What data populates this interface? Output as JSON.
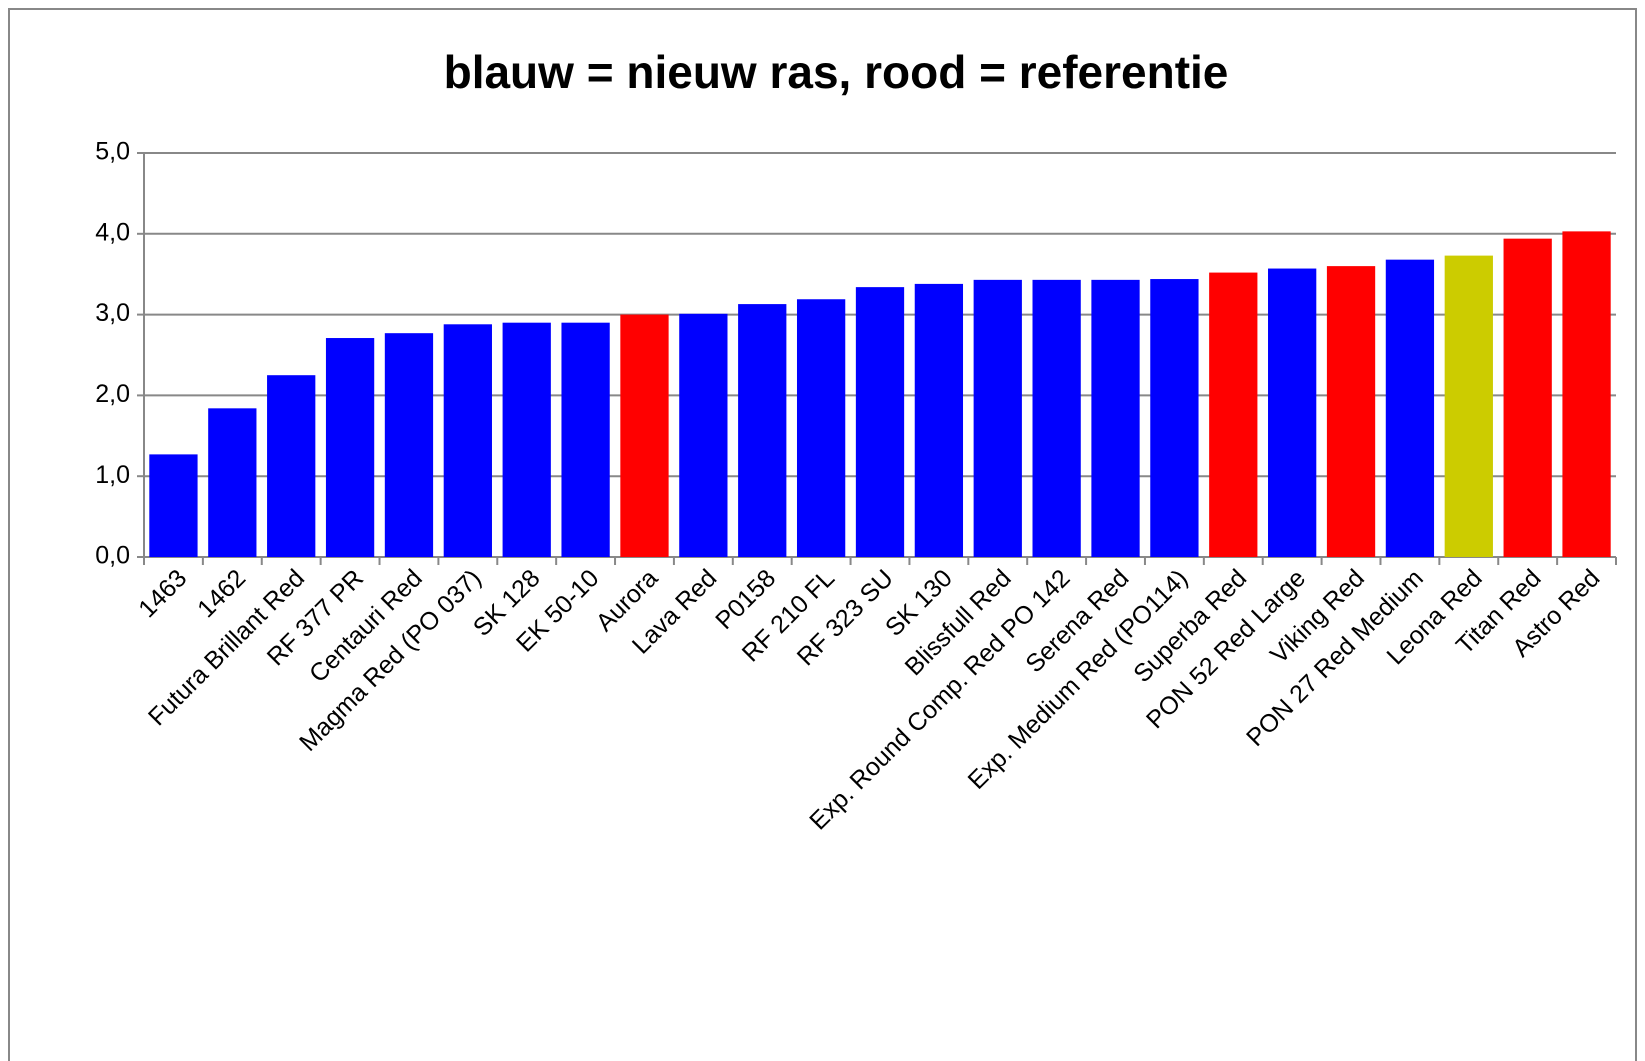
{
  "chart_data": {
    "type": "bar",
    "title": "blauw = nieuw ras, rood = referentie",
    "categories": [
      "1463",
      "1462",
      "Futura Brillant Red",
      "RF 377 PR",
      "Centauri Red",
      "Magma Red (PO 037)",
      "SK 128",
      "EK 50-10",
      "Aurora",
      "Lava Red",
      "P0158",
      "RF 210 FL",
      "RF 323 SU",
      "SK 130",
      "Blissfull Red",
      "Exp. Round Comp. Red PO 142",
      "Serena Red",
      "Exp. Medium Red (PO114)",
      "Superba Red",
      "PON 52 Red Large",
      "Viking Red",
      "PON 27 Red Medium",
      "Leona Red",
      "Titan Red",
      "Astro Red"
    ],
    "values": [
      1.27,
      1.84,
      2.25,
      2.71,
      2.77,
      2.88,
      2.9,
      2.9,
      3.0,
      3.01,
      3.13,
      3.19,
      3.34,
      3.38,
      3.43,
      3.43,
      3.43,
      3.44,
      3.52,
      3.57,
      3.6,
      3.68,
      3.73,
      3.94,
      4.03
    ],
    "colors": [
      "#0000ff",
      "#0000ff",
      "#0000ff",
      "#0000ff",
      "#0000ff",
      "#0000ff",
      "#0000ff",
      "#0000ff",
      "#ff0000",
      "#0000ff",
      "#0000ff",
      "#0000ff",
      "#0000ff",
      "#0000ff",
      "#0000ff",
      "#0000ff",
      "#0000ff",
      "#0000ff",
      "#ff0000",
      "#0000ff",
      "#ff0000",
      "#0000ff",
      "#cccc00",
      "#ff0000",
      "#ff0000"
    ],
    "ylim": [
      0,
      5
    ],
    "yticks": [
      {
        "value": 0,
        "label": "0,0"
      },
      {
        "value": 1,
        "label": "1,0"
      },
      {
        "value": 2,
        "label": "2,0"
      },
      {
        "value": 3,
        "label": "3,0"
      },
      {
        "value": 4,
        "label": "4,0"
      },
      {
        "value": 5,
        "label": "5,0"
      }
    ],
    "grid": true
  }
}
